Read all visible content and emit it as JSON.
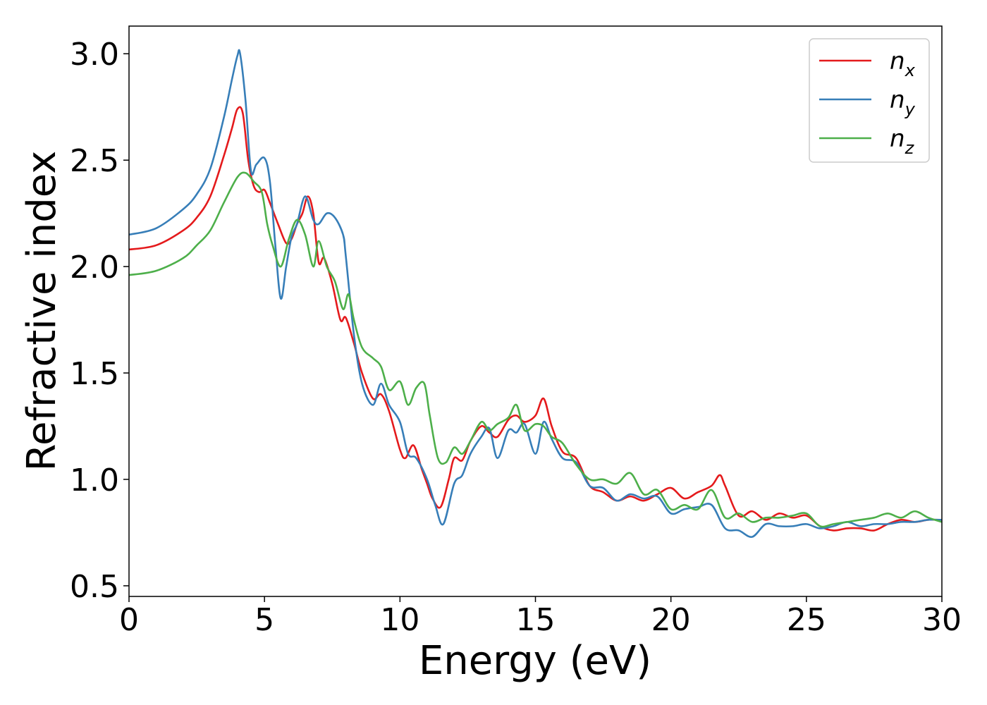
{
  "chart_data": {
    "type": "line",
    "title": "",
    "xlabel": "Energy (eV)",
    "ylabel": "Refractive index",
    "xlim": [
      0,
      30
    ],
    "ylim": [
      0.45,
      3.13
    ],
    "xticks": [
      0,
      5,
      10,
      15,
      20,
      25,
      30
    ],
    "yticks": [
      0.5,
      1.0,
      1.5,
      2.0,
      2.5,
      3.0
    ],
    "xtick_labels": [
      "0",
      "5",
      "10",
      "15",
      "20",
      "25",
      "30"
    ],
    "ytick_labels": [
      "0.5",
      "1.0",
      "1.5",
      "2.0",
      "2.5",
      "3.0"
    ],
    "grid": false,
    "legend_position": "top-right",
    "series": [
      {
        "name": "n_x",
        "legend_base": "n",
        "legend_sub": "x",
        "color": "#e41a1c",
        "x": [
          0,
          1,
          2,
          2.5,
          3,
          3.5,
          3.8,
          4.0,
          4.2,
          4.4,
          4.6,
          4.8,
          5.0,
          5.2,
          5.5,
          5.8,
          6.0,
          6.2,
          6.4,
          6.6,
          6.8,
          7.0,
          7.2,
          7.5,
          7.8,
          8.0,
          8.3,
          8.6,
          9.0,
          9.3,
          9.6,
          10.0,
          10.2,
          10.5,
          10.8,
          11.0,
          11.2,
          11.5,
          11.8,
          12.0,
          12.3,
          12.6,
          13.0,
          13.3,
          13.6,
          14.0,
          14.3,
          14.6,
          15.0,
          15.3,
          15.6,
          16.0,
          16.5,
          17.0,
          17.5,
          18.0,
          18.5,
          19.0,
          19.5,
          20.0,
          20.5,
          21.0,
          21.5,
          21.8,
          22.0,
          22.5,
          23.0,
          23.5,
          24.0,
          24.5,
          25.0,
          25.5,
          26.0,
          26.5,
          27.0,
          27.5,
          28.0,
          28.5,
          29.0,
          29.5,
          30.0
        ],
        "y": [
          2.08,
          2.1,
          2.17,
          2.23,
          2.33,
          2.52,
          2.65,
          2.74,
          2.72,
          2.5,
          2.38,
          2.35,
          2.36,
          2.3,
          2.2,
          2.11,
          2.13,
          2.2,
          2.25,
          2.33,
          2.25,
          2.02,
          2.04,
          1.92,
          1.75,
          1.76,
          1.64,
          1.5,
          1.38,
          1.4,
          1.32,
          1.14,
          1.1,
          1.16,
          1.05,
          0.98,
          0.91,
          0.87,
          1.0,
          1.1,
          1.09,
          1.18,
          1.25,
          1.22,
          1.2,
          1.28,
          1.3,
          1.27,
          1.3,
          1.38,
          1.25,
          1.13,
          1.1,
          0.97,
          0.94,
          0.9,
          0.92,
          0.9,
          0.93,
          0.96,
          0.91,
          0.94,
          0.97,
          1.02,
          0.97,
          0.83,
          0.85,
          0.81,
          0.84,
          0.82,
          0.83,
          0.78,
          0.76,
          0.77,
          0.77,
          0.76,
          0.79,
          0.81,
          0.8,
          0.81,
          0.81
        ]
      },
      {
        "name": "n_y",
        "legend_base": "n",
        "legend_sub": "y",
        "color": "#377eb8",
        "x": [
          0,
          1,
          2,
          2.5,
          3,
          3.5,
          3.8,
          4.0,
          4.1,
          4.3,
          4.5,
          4.7,
          5.0,
          5.2,
          5.4,
          5.6,
          5.8,
          6.0,
          6.2,
          6.5,
          6.8,
          7.0,
          7.3,
          7.6,
          7.9,
          8.0,
          8.3,
          8.6,
          9.0,
          9.3,
          9.6,
          10.0,
          10.3,
          10.6,
          11.0,
          11.3,
          11.6,
          12.0,
          12.3,
          12.6,
          13.0,
          13.3,
          13.6,
          14.0,
          14.3,
          14.6,
          15.0,
          15.3,
          15.6,
          16.0,
          16.5,
          17.0,
          17.5,
          18.0,
          18.5,
          19.0,
          19.5,
          20.0,
          20.5,
          21.0,
          21.5,
          22.0,
          22.5,
          23.0,
          23.5,
          24.0,
          24.5,
          25.0,
          25.5,
          26.0,
          26.5,
          27.0,
          27.5,
          28.0,
          28.5,
          29.0,
          29.5,
          30.0
        ],
        "y": [
          2.15,
          2.18,
          2.27,
          2.34,
          2.46,
          2.7,
          2.88,
          2.99,
          3.0,
          2.78,
          2.45,
          2.48,
          2.51,
          2.4,
          2.1,
          1.85,
          2.0,
          2.14,
          2.2,
          2.33,
          2.22,
          2.2,
          2.25,
          2.23,
          2.15,
          2.05,
          1.68,
          1.45,
          1.35,
          1.45,
          1.35,
          1.27,
          1.12,
          1.1,
          1.0,
          0.88,
          0.79,
          0.98,
          1.02,
          1.12,
          1.2,
          1.24,
          1.1,
          1.23,
          1.22,
          1.26,
          1.12,
          1.27,
          1.19,
          1.1,
          1.08,
          0.97,
          0.96,
          0.9,
          0.93,
          0.91,
          0.92,
          0.84,
          0.86,
          0.87,
          0.88,
          0.77,
          0.76,
          0.73,
          0.79,
          0.78,
          0.78,
          0.79,
          0.77,
          0.78,
          0.8,
          0.78,
          0.79,
          0.79,
          0.8,
          0.8,
          0.81,
          0.81
        ]
      },
      {
        "name": "n_z",
        "legend_base": "n",
        "legend_sub": "z",
        "color": "#4daf4a",
        "x": [
          0,
          1,
          2,
          2.5,
          3,
          3.5,
          4.0,
          4.3,
          4.6,
          4.9,
          5.1,
          5.3,
          5.6,
          5.9,
          6.2,
          6.5,
          6.8,
          7.0,
          7.3,
          7.6,
          7.9,
          8.1,
          8.3,
          8.6,
          9.0,
          9.3,
          9.6,
          10.0,
          10.3,
          10.6,
          10.9,
          11.1,
          11.4,
          11.7,
          12.0,
          12.3,
          12.6,
          13.0,
          13.3,
          13.6,
          14.0,
          14.3,
          14.6,
          15.0,
          15.3,
          15.6,
          16.0,
          16.5,
          17.0,
          17.5,
          18.0,
          18.5,
          19.0,
          19.5,
          20.0,
          20.5,
          21.0,
          21.5,
          22.0,
          22.5,
          23.0,
          23.5,
          24.0,
          24.5,
          25.0,
          25.5,
          26.0,
          26.5,
          27.0,
          27.5,
          28.0,
          28.5,
          29.0,
          29.5,
          30.0
        ],
        "y": [
          1.96,
          1.98,
          2.04,
          2.1,
          2.17,
          2.3,
          2.42,
          2.44,
          2.4,
          2.35,
          2.2,
          2.1,
          2.0,
          2.13,
          2.22,
          2.15,
          2.0,
          2.12,
          2.0,
          1.93,
          1.8,
          1.87,
          1.75,
          1.62,
          1.57,
          1.53,
          1.42,
          1.46,
          1.35,
          1.43,
          1.45,
          1.3,
          1.1,
          1.08,
          1.15,
          1.12,
          1.18,
          1.27,
          1.23,
          1.26,
          1.29,
          1.35,
          1.23,
          1.26,
          1.25,
          1.2,
          1.17,
          1.07,
          1.0,
          1.0,
          0.98,
          1.03,
          0.93,
          0.95,
          0.86,
          0.88,
          0.86,
          0.95,
          0.82,
          0.84,
          0.8,
          0.82,
          0.82,
          0.83,
          0.84,
          0.78,
          0.79,
          0.8,
          0.81,
          0.82,
          0.84,
          0.82,
          0.85,
          0.82,
          0.8
        ]
      }
    ]
  }
}
